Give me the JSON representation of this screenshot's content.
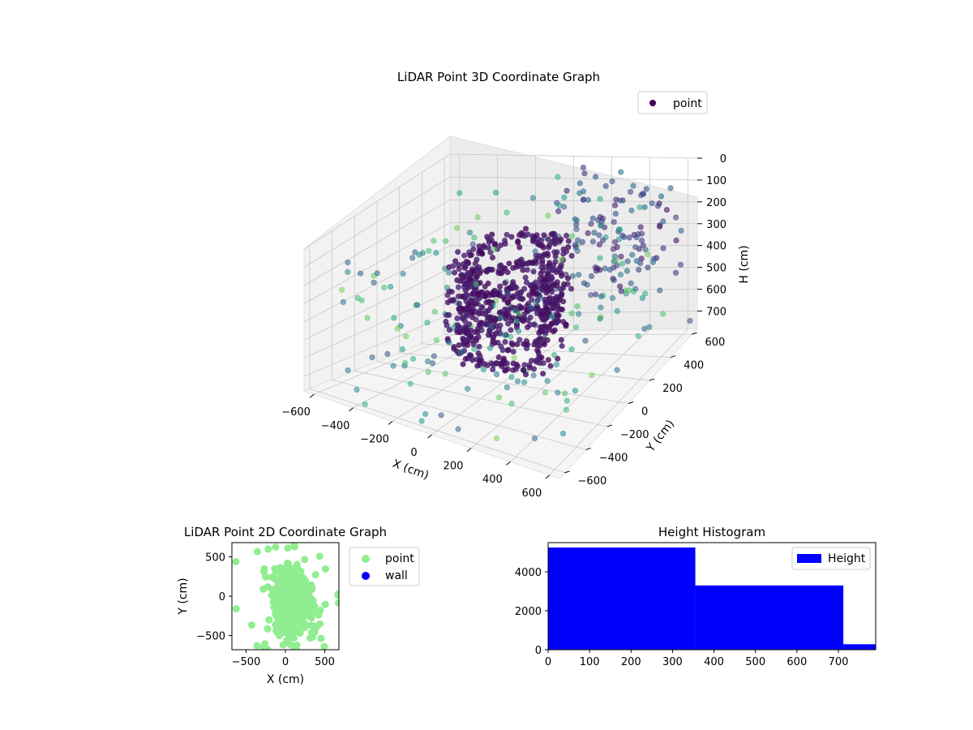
{
  "colors": {
    "point_2d": "#90ee90",
    "wall": "#0000ff",
    "hist_bar": "#0000ff",
    "pane": "#f2f2f2",
    "grid": "#c8c8c8",
    "colormap": "viridis"
  },
  "chart_data": [
    {
      "type": "scatter3d",
      "title": "LiDAR Point 3D Coordinate Graph",
      "xlabel": "X (cm)",
      "ylabel": "Y (cm)",
      "zlabel": "H (cm)",
      "xticks": [
        "−600",
        "−400",
        "−200",
        "0",
        "200",
        "400",
        "600"
      ],
      "yticks": [
        "−600",
        "−400",
        "−200",
        "0",
        "200",
        "400",
        "600"
      ],
      "zticks": [
        "0",
        "100",
        "200",
        "300",
        "400",
        "500",
        "600",
        "700"
      ],
      "xlim": [
        -650,
        650
      ],
      "ylim": [
        -650,
        650
      ],
      "zlim": [
        0,
        780
      ],
      "z_inverted": true,
      "grid": true,
      "legend": {
        "position": "top-right",
        "entries": [
          "point"
        ]
      },
      "series": [
        {
          "name": "point",
          "description": "helical dense core of points near the center plus sparse surrounding points, colored by a viridis-like map",
          "core_helix": {
            "radius": 230,
            "turns": 4,
            "h_range": [
              120,
              600
            ],
            "n": 700
          },
          "sparse_points": 180
        }
      ]
    },
    {
      "type": "scatter",
      "title": "LiDAR Point 2D Coordinate Graph",
      "xlabel": "X (cm)",
      "ylabel": "Y (cm)",
      "xticks": [
        "−500",
        "0",
        "500"
      ],
      "yticks": [
        "500",
        "0",
        "−500"
      ],
      "xlim": [
        -680,
        680
      ],
      "ylim": [
        -680,
        680
      ],
      "legend": {
        "position": "outside-right",
        "entries": [
          "point",
          "wall"
        ]
      },
      "series": [
        {
          "name": "point",
          "center": [
            80,
            -50
          ],
          "spread": [
            230,
            420
          ],
          "n": 900
        },
        {
          "name": "wall",
          "values": []
        }
      ]
    },
    {
      "type": "bar",
      "title": "Height Histogram",
      "xlabel": "",
      "ylabel": "",
      "xticks": [
        "0",
        "100",
        "200",
        "300",
        "400",
        "500",
        "600",
        "700"
      ],
      "yticks": [
        "0",
        "2000",
        "4000"
      ],
      "xlim": [
        0,
        790
      ],
      "ylim": [
        0,
        5500
      ],
      "legend": {
        "position": "top-right",
        "entries": [
          "Height"
        ]
      },
      "bins": [
        {
          "start": 0,
          "end": 355,
          "count": 5250
        },
        {
          "start": 355,
          "end": 712,
          "count": 3300
        },
        {
          "start": 712,
          "end": 790,
          "count": 280
        }
      ]
    }
  ]
}
